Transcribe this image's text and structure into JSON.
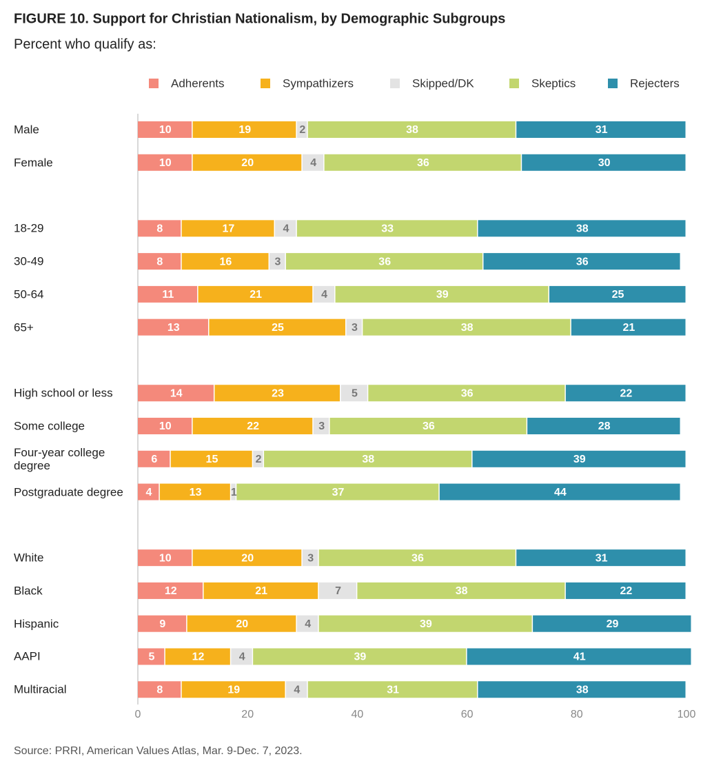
{
  "chart_data": {
    "type": "stacked_bar_horizontal",
    "title": "FIGURE 10.  Support for Christian Nationalism, by Demographic Subgroups",
    "subtitle": "Percent who qualify as:",
    "source": "Source: PRRI, American Values Atlas, Mar. 9-Dec. 7, 2023.",
    "categories": [
      "Male",
      "Female",
      null,
      "18-29",
      "30-49",
      "50-64",
      "65+",
      null,
      "High school or less",
      "Some college",
      "Four-year college degree",
      "Postgraduate degree",
      null,
      "White",
      "Black",
      "Hispanic",
      "AAPI",
      "Multiracial"
    ],
    "series": [
      {
        "name": "Adherents",
        "color": "#f4897b",
        "values": [
          10,
          10,
          null,
          8,
          8,
          11,
          13,
          null,
          14,
          10,
          6,
          4,
          null,
          10,
          12,
          9,
          5,
          8
        ]
      },
      {
        "name": "Sympathizers",
        "color": "#f6b11c",
        "values": [
          19,
          20,
          null,
          17,
          16,
          21,
          25,
          null,
          23,
          22,
          15,
          13,
          null,
          20,
          21,
          20,
          12,
          19
        ]
      },
      {
        "name": "Skipped/DK",
        "color": "#e3e3e3",
        "values": [
          2,
          4,
          null,
          4,
          3,
          4,
          3,
          null,
          5,
          3,
          2,
          1,
          null,
          3,
          7,
          4,
          4,
          4
        ]
      },
      {
        "name": "Skeptics",
        "color": "#c2d66f",
        "values": [
          38,
          36,
          null,
          33,
          36,
          39,
          38,
          null,
          36,
          36,
          38,
          37,
          null,
          36,
          38,
          39,
          39,
          31
        ]
      },
      {
        "name": "Rejecters",
        "color": "#2e8fab",
        "values": [
          31,
          30,
          null,
          38,
          36,
          25,
          21,
          null,
          22,
          28,
          39,
          44,
          null,
          31,
          22,
          29,
          41,
          38
        ]
      }
    ],
    "xlim": [
      0,
      100
    ],
    "xticks": [
      0,
      20,
      40,
      60,
      80,
      100
    ]
  }
}
